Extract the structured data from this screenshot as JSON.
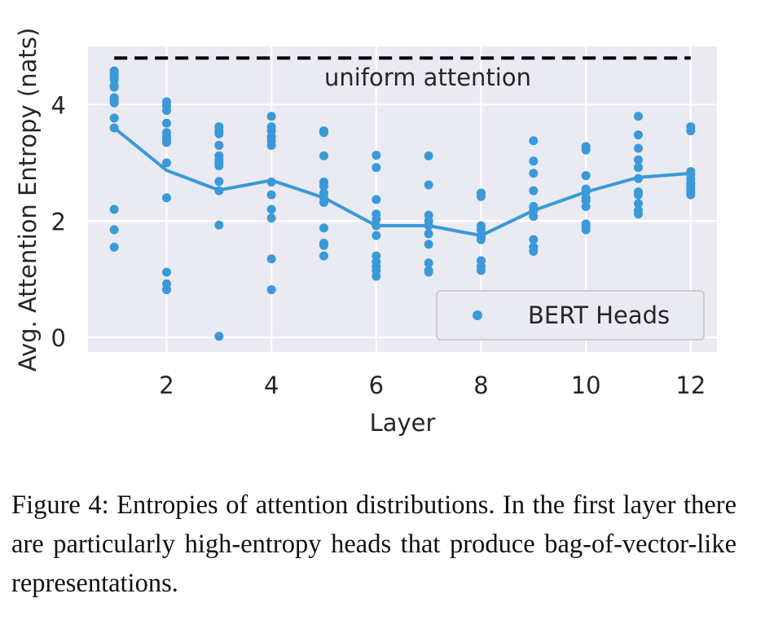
{
  "chart_data": {
    "type": "scatter",
    "xlabel": "Layer",
    "ylabel": "Avg. Attention Entropy (nats)",
    "xlim": [
      0.5,
      12.5
    ],
    "ylim": [
      -0.25,
      5.0
    ],
    "xticks": [
      2,
      4,
      6,
      8,
      10,
      12
    ],
    "xtick_labels": [
      "2",
      "4",
      "6",
      "8",
      "10",
      "12"
    ],
    "yticks": [
      0,
      2,
      4
    ],
    "ytick_labels": [
      "0",
      "2",
      "4"
    ],
    "grid": true,
    "legend_position": "lower-right",
    "reference_line": {
      "label": "uniform attention",
      "y": 4.8,
      "x_range": [
        1,
        12
      ],
      "style": "dashed",
      "color": "#000000"
    },
    "series": [
      {
        "name": "BERT Heads",
        "kind": "scatter",
        "color": "#3a99d8",
        "points": [
          [
            1,
            4.58
          ],
          [
            1,
            4.53
          ],
          [
            1,
            4.47
          ],
          [
            1,
            4.43
          ],
          [
            1,
            4.33
          ],
          [
            1,
            4.3
          ],
          [
            1,
            4.12
          ],
          [
            1,
            4.07
          ],
          [
            1,
            4.03
          ],
          [
            1,
            3.77
          ],
          [
            1,
            3.6
          ],
          [
            1,
            2.2
          ],
          [
            1,
            1.85
          ],
          [
            1,
            1.55
          ],
          [
            2,
            4.05
          ],
          [
            2,
            3.98
          ],
          [
            2,
            3.9
          ],
          [
            2,
            3.68
          ],
          [
            2,
            3.52
          ],
          [
            2,
            3.45
          ],
          [
            2,
            3.4
          ],
          [
            2,
            3.35
          ],
          [
            2,
            3.0
          ],
          [
            2,
            2.4
          ],
          [
            2,
            1.12
          ],
          [
            2,
            0.92
          ],
          [
            2,
            0.82
          ],
          [
            3,
            3.62
          ],
          [
            3,
            3.55
          ],
          [
            3,
            3.5
          ],
          [
            3,
            3.3
          ],
          [
            3,
            3.12
          ],
          [
            3,
            3.05
          ],
          [
            3,
            3.0
          ],
          [
            3,
            2.95
          ],
          [
            3,
            2.68
          ],
          [
            3,
            2.52
          ],
          [
            3,
            1.93
          ],
          [
            3,
            0.02
          ],
          [
            4,
            3.8
          ],
          [
            4,
            3.62
          ],
          [
            4,
            3.55
          ],
          [
            4,
            3.45
          ],
          [
            4,
            3.38
          ],
          [
            4,
            3.3
          ],
          [
            4,
            2.67
          ],
          [
            4,
            2.45
          ],
          [
            4,
            2.2
          ],
          [
            4,
            2.05
          ],
          [
            4,
            1.35
          ],
          [
            4,
            0.82
          ],
          [
            5,
            3.55
          ],
          [
            5,
            3.52
          ],
          [
            5,
            3.12
          ],
          [
            5,
            2.67
          ],
          [
            5,
            2.6
          ],
          [
            5,
            2.48
          ],
          [
            5,
            2.4
          ],
          [
            5,
            2.32
          ],
          [
            5,
            1.88
          ],
          [
            5,
            1.62
          ],
          [
            5,
            1.58
          ],
          [
            5,
            1.4
          ],
          [
            6,
            3.13
          ],
          [
            6,
            2.92
          ],
          [
            6,
            2.37
          ],
          [
            6,
            2.12
          ],
          [
            6,
            2.03
          ],
          [
            6,
            1.92
          ],
          [
            6,
            1.75
          ],
          [
            6,
            1.4
          ],
          [
            6,
            1.3
          ],
          [
            6,
            1.22
          ],
          [
            6,
            1.15
          ],
          [
            6,
            1.05
          ],
          [
            7,
            3.12
          ],
          [
            7,
            2.62
          ],
          [
            7,
            2.1
          ],
          [
            7,
            2.0
          ],
          [
            7,
            1.92
          ],
          [
            7,
            1.78
          ],
          [
            7,
            1.6
          ],
          [
            7,
            1.28
          ],
          [
            7,
            1.15
          ],
          [
            7,
            1.12
          ],
          [
            8,
            2.48
          ],
          [
            8,
            2.42
          ],
          [
            8,
            1.92
          ],
          [
            8,
            1.85
          ],
          [
            8,
            1.75
          ],
          [
            8,
            1.72
          ],
          [
            8,
            1.68
          ],
          [
            8,
            1.32
          ],
          [
            8,
            1.22
          ],
          [
            8,
            1.15
          ],
          [
            9,
            3.38
          ],
          [
            9,
            3.03
          ],
          [
            9,
            2.82
          ],
          [
            9,
            2.52
          ],
          [
            9,
            2.25
          ],
          [
            9,
            2.18
          ],
          [
            9,
            2.08
          ],
          [
            9,
            1.68
          ],
          [
            9,
            1.55
          ],
          [
            9,
            1.48
          ],
          [
            10,
            3.28
          ],
          [
            10,
            3.22
          ],
          [
            10,
            2.78
          ],
          [
            10,
            2.55
          ],
          [
            10,
            2.5
          ],
          [
            10,
            2.4
          ],
          [
            10,
            2.35
          ],
          [
            10,
            2.25
          ],
          [
            10,
            1.95
          ],
          [
            10,
            1.9
          ],
          [
            10,
            1.85
          ],
          [
            11,
            3.8
          ],
          [
            11,
            3.48
          ],
          [
            11,
            3.25
          ],
          [
            11,
            3.05
          ],
          [
            11,
            2.92
          ],
          [
            11,
            2.73
          ],
          [
            11,
            2.5
          ],
          [
            11,
            2.45
          ],
          [
            11,
            2.3
          ],
          [
            11,
            2.18
          ],
          [
            11,
            2.12
          ],
          [
            12,
            3.62
          ],
          [
            12,
            3.55
          ],
          [
            12,
            2.85
          ],
          [
            12,
            2.8
          ],
          [
            12,
            2.72
          ],
          [
            12,
            2.65
          ],
          [
            12,
            2.6
          ],
          [
            12,
            2.55
          ],
          [
            12,
            2.5
          ],
          [
            12,
            2.45
          ]
        ]
      },
      {
        "name": "",
        "kind": "line",
        "color": "#3a99d8",
        "x": [
          1,
          2,
          3,
          4,
          5,
          6,
          7,
          8,
          9,
          10,
          11,
          12
        ],
        "y": [
          3.6,
          2.87,
          2.53,
          2.7,
          2.4,
          1.92,
          1.92,
          1.75,
          2.18,
          2.5,
          2.75,
          2.82
        ]
      }
    ]
  },
  "caption": {
    "text": "Figure 4:  Entropies of attention distributions.  In the first layer there are particularly high-entropy heads that produce bag-of-vector-like representations."
  }
}
